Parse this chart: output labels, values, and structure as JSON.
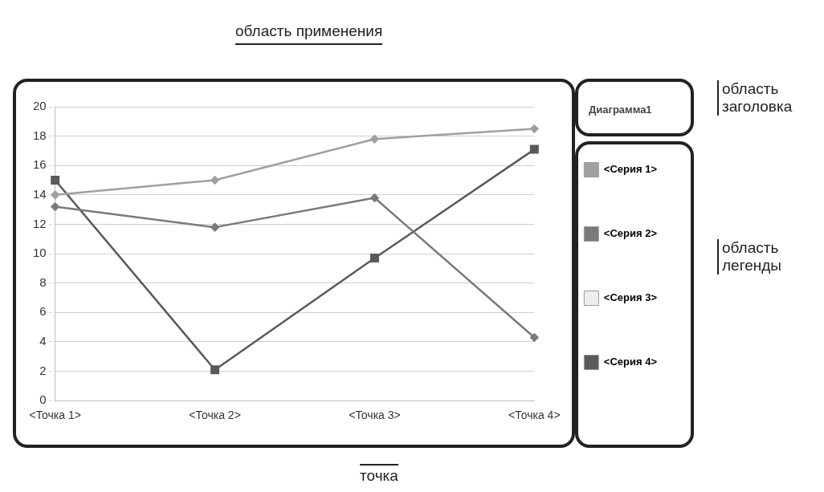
{
  "chart_data": {
    "type": "line",
    "title": "Диаграмма1",
    "categories": [
      "<Точка 1>",
      "<Точка 2>",
      "<Точка 3>",
      "<Точка 4>"
    ],
    "series": [
      {
        "name": "<Серия 1>",
        "color": "#a0a0a0",
        "values": [
          14,
          15,
          17.8,
          18.5
        ]
      },
      {
        "name": "<Серия 2>",
        "color": "#7a7a7a",
        "values": [
          13.2,
          11.8,
          13.8,
          4.3
        ]
      },
      {
        "name": "<Серия 3>",
        "color": "#eeeeee",
        "values": [
          null,
          null,
          null,
          null
        ]
      },
      {
        "name": "<Серия 4>",
        "color": "#5a5a5a",
        "values": [
          15,
          2.1,
          9.7,
          17.1
        ],
        "marker": "square"
      }
    ],
    "ylim": [
      0,
      20
    ],
    "yticks": [
      0,
      2,
      4,
      6,
      8,
      10,
      12,
      14,
      16,
      18,
      20
    ],
    "grid": "y",
    "legend": "right",
    "marker": "diamond",
    "line_style": "solid",
    "annotations": [
      "область применения",
      "точка",
      "область заголовка",
      "область легенды"
    ]
  }
}
